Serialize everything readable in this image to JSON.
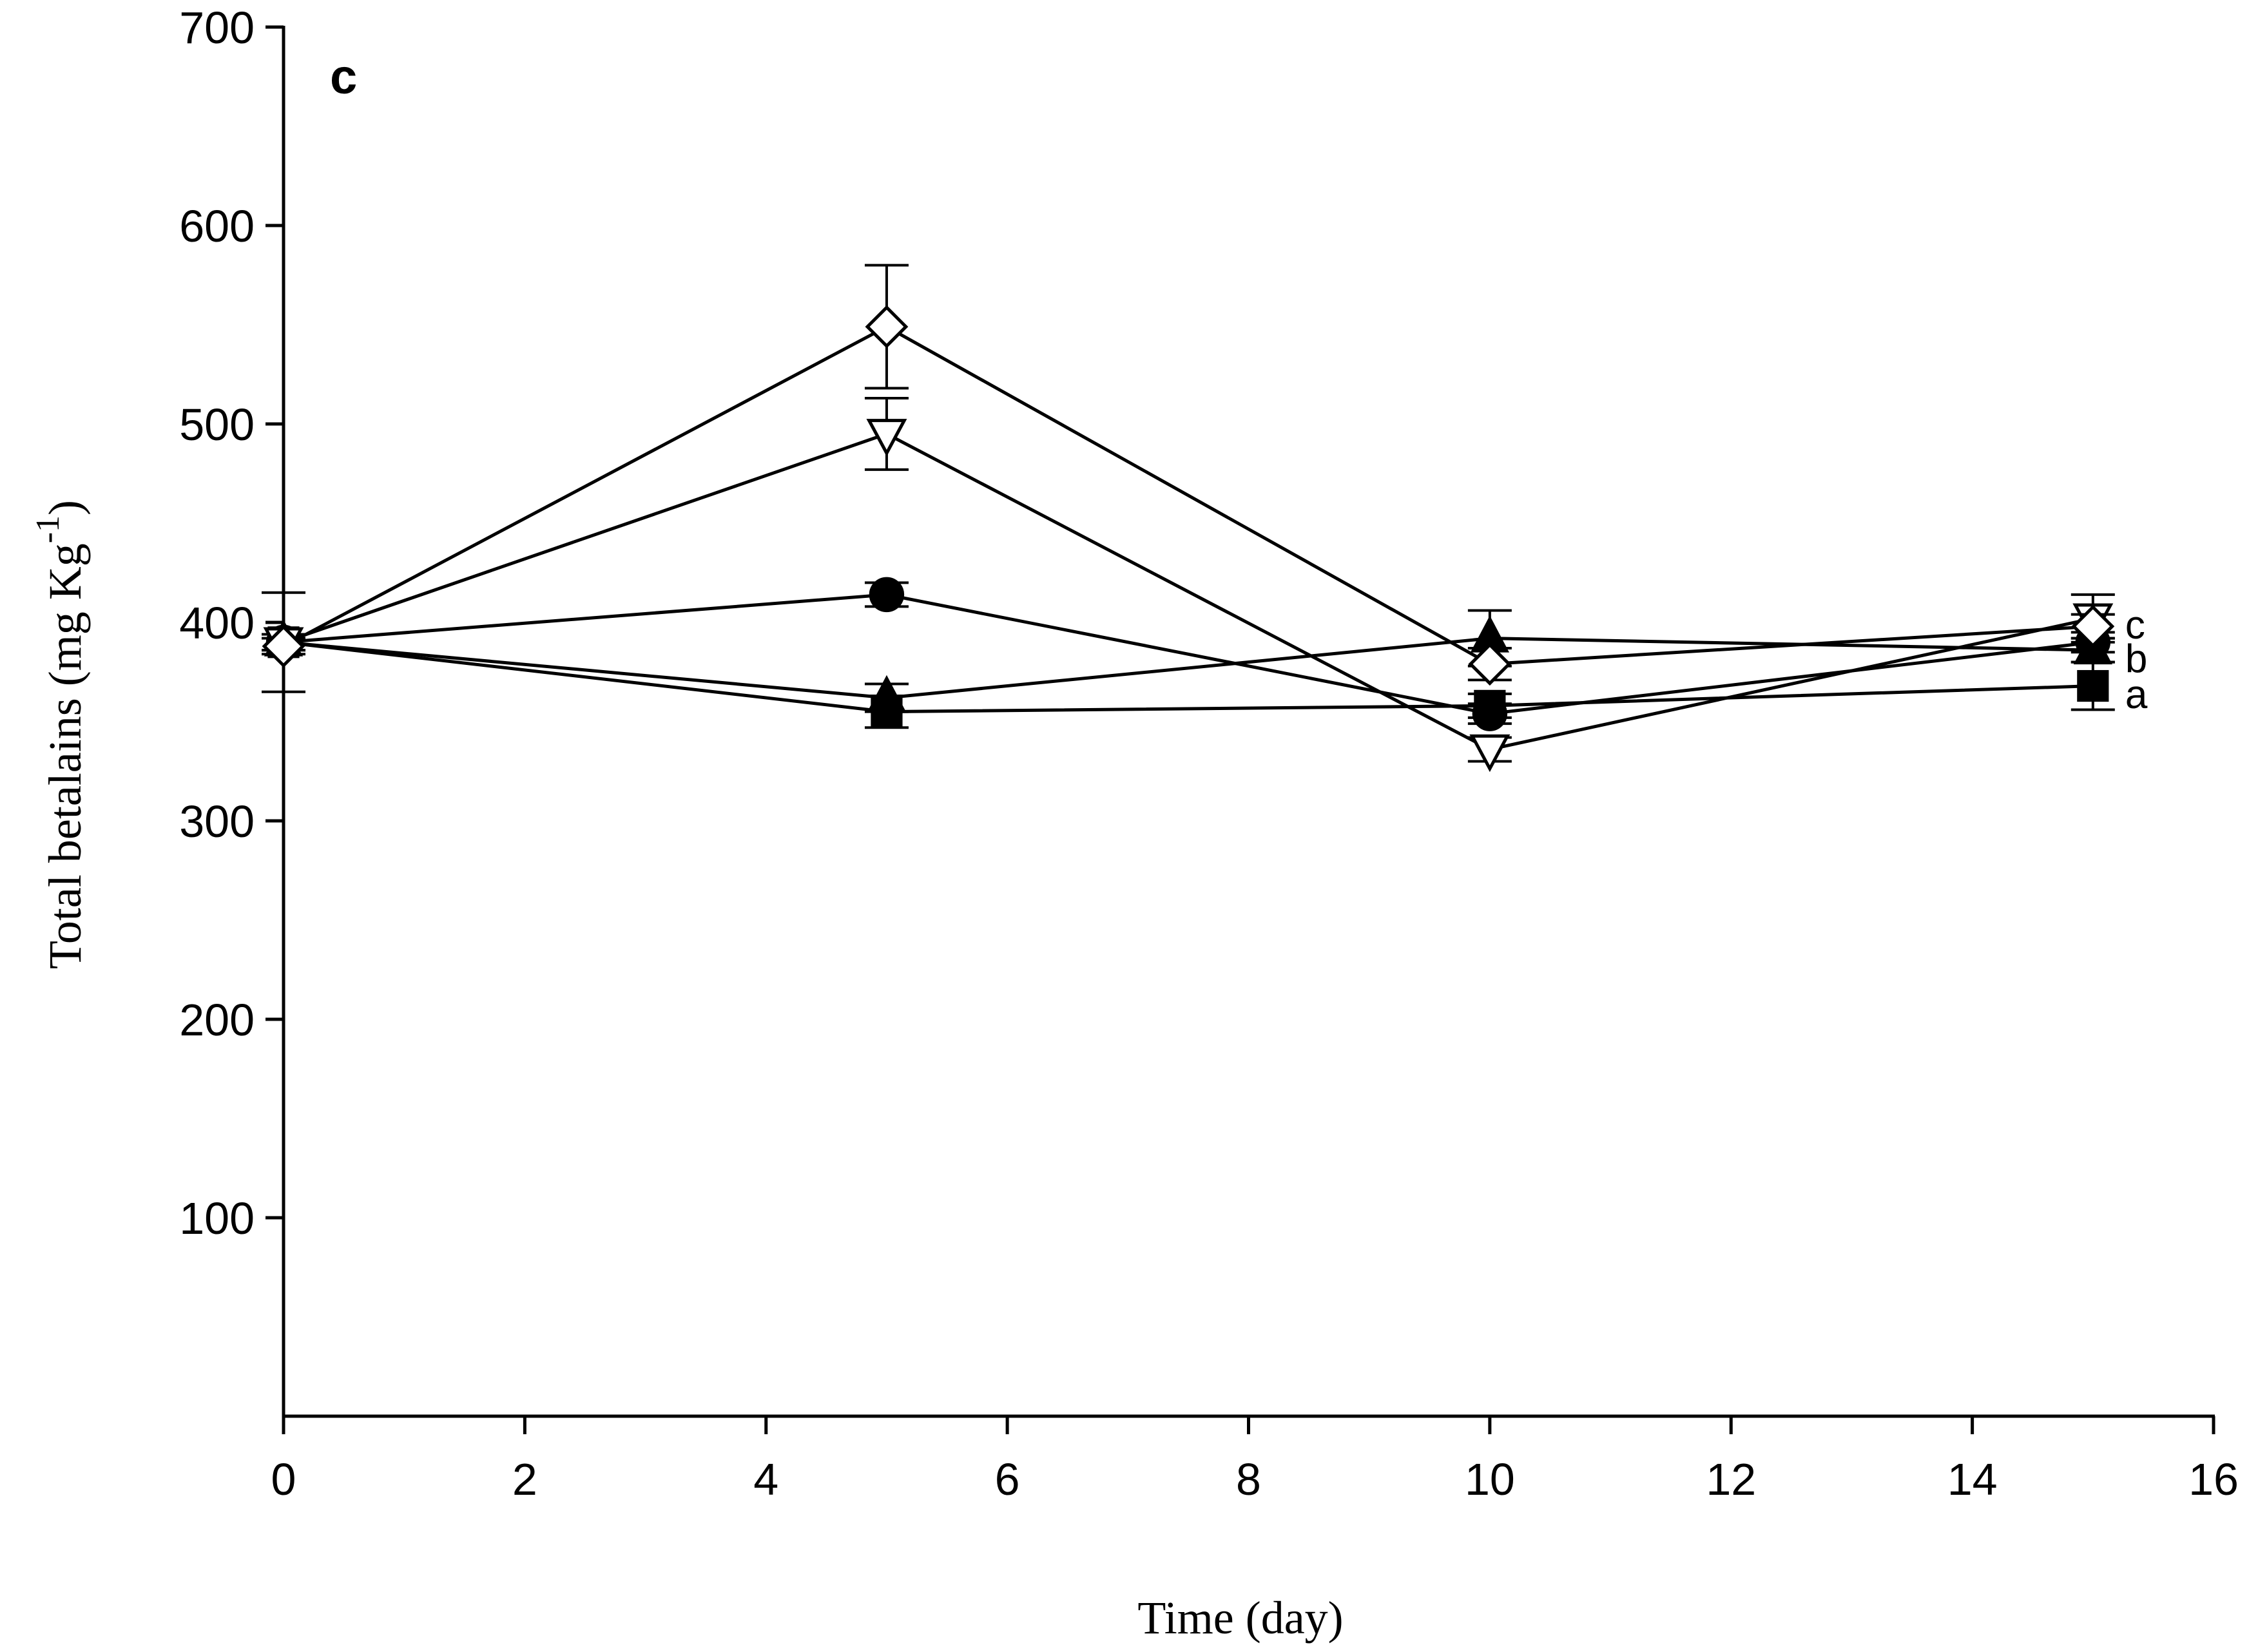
{
  "chart_data": {
    "type": "line",
    "panel_label": "c",
    "xlabel": "Time (day)",
    "ylabel": "Total betalains (mg Kg",
    "ylabel_sup": "-1",
    "ylabel_close": ")",
    "xlim": [
      0,
      16
    ],
    "ylim": [
      0,
      700
    ],
    "xticks": [
      0,
      2,
      4,
      6,
      8,
      10,
      12,
      14,
      16
    ],
    "yticks": [
      100,
      200,
      300,
      400,
      500,
      600,
      700
    ],
    "x": [
      0,
      5,
      10,
      15
    ],
    "series": [
      {
        "name": "filled-square",
        "marker": "square",
        "fill": "#000000",
        "values": [
          390,
          355,
          358,
          368
        ],
        "errors": [
          4,
          8,
          6,
          12
        ]
      },
      {
        "name": "filled-triangle-up",
        "marker": "triangle-up",
        "fill": "#000000",
        "values": [
          390,
          362,
          392,
          386
        ],
        "errors": [
          4,
          7,
          14,
          6
        ]
      },
      {
        "name": "filled-circle",
        "marker": "circle",
        "fill": "#000000",
        "values": [
          390,
          414,
          354,
          390
        ],
        "errors": [
          4,
          6,
          5,
          5
        ]
      },
      {
        "name": "open-triangle-down",
        "marker": "triangle-down",
        "fill": "#ffffff",
        "values": [
          390,
          495,
          336,
          402
        ],
        "errors": [
          25,
          18,
          6,
          12
        ]
      },
      {
        "name": "open-diamond",
        "marker": "diamond",
        "fill": "#ffffff",
        "values": [
          388,
          549,
          379,
          398
        ],
        "errors": [
          4,
          31,
          8,
          6
        ]
      }
    ],
    "group_labels": [
      {
        "text": "c",
        "y": 399
      },
      {
        "text": "b",
        "y": 382
      },
      {
        "text": "a",
        "y": 364
      }
    ],
    "grid": false,
    "legend": "none"
  }
}
